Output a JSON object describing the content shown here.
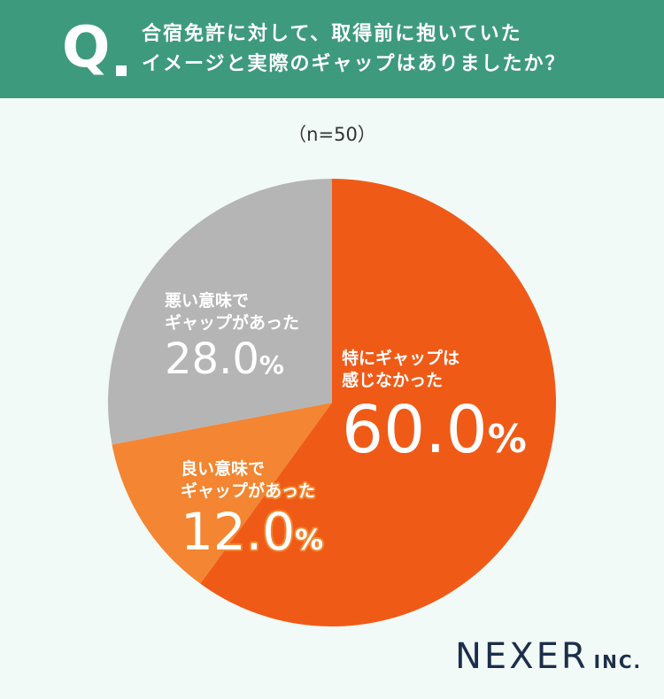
{
  "header": {
    "q_mark": "Q",
    "question_line1": "合宿免許に対して、取得前に抱いていた",
    "question_line2": "イメージと実際のギャップはありましたか？"
  },
  "sample_size": "（n=50）",
  "chart_data": {
    "type": "pie",
    "start_angle_deg": 0,
    "direction": "clockwise",
    "slices": [
      {
        "label_line1": "特にギャップは",
        "label_line2": "感じなかった",
        "value": 60.0,
        "value_label": "60.0",
        "color": "#f05a17"
      },
      {
        "label_line1": "良い意味で",
        "label_line2": "ギャップがあった",
        "value": 12.0,
        "value_label": "12.0",
        "color": "#f48533"
      },
      {
        "label_line1": "悪い意味で",
        "label_line2": "ギャップがあった",
        "value": 28.0,
        "value_label": "28.0",
        "color": "#b5b5b5"
      }
    ],
    "unit": "%"
  },
  "logo": {
    "main": "NEXER",
    "sub": "INC."
  },
  "colors": {
    "header_bg": "#3e9a7c",
    "page_bg": "#f1faf6",
    "logo": "#1c2e4a"
  }
}
